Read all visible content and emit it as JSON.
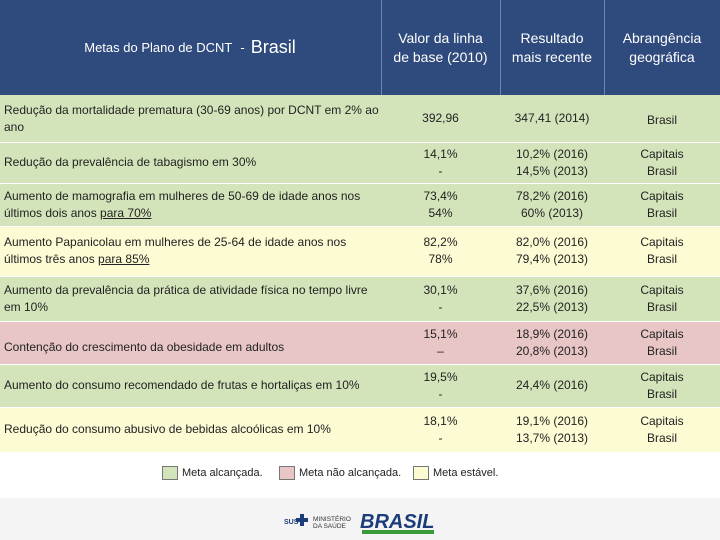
{
  "header": {
    "title": "Metas do Plano de DCNT",
    "title_sep": "-",
    "title_big": "Brasil",
    "col1_l1": "Valor da linha",
    "col1_l2": "de base (2010)",
    "col2_l1": "Resultado",
    "col2_l2": "mais recente",
    "col3_l1": "Abrangência",
    "col3_l2": "geográfica"
  },
  "rows": [
    {
      "status": "green",
      "goal": "Redução da mortalidade prematura (30-69 anos) por DCNT em 2% ao ano",
      "base_l1": "392,96",
      "base_l2": "",
      "res_l1": "347,41 (2014)",
      "res_l2": "",
      "scope_l1": "Brasil",
      "scope_l2": ""
    },
    {
      "status": "green",
      "goal": "Redução da prevalência de tabagismo em 30%",
      "base_l1": "14,1%",
      "base_l2": "-",
      "res_l1": "10,2% (2016)",
      "res_l2": "14,5% (2013)",
      "scope_l1": "Capitais",
      "scope_l2": "Brasil"
    },
    {
      "status": "green",
      "goal_a": "Aumento de mamografia em mulheres de 50-69 de idade anos nos últimos dois anos ",
      "goal_b": "para 70%",
      "base_l1": "73,4%",
      "base_l2": "54%",
      "res_l1": "78,2% (2016)",
      "res_l2": "60% (2013)",
      "scope_l1": "Capitais",
      "scope_l2": "Brasil"
    },
    {
      "status": "yellow",
      "goal_a": "Aumento Papanicolau em mulheres de 25-64 de idade anos nos últimos três anos ",
      "goal_b": "para 85%",
      "base_l1": "82,2%",
      "base_l2": "78%",
      "res_l1": "82,0% (2016)",
      "res_l2": "79,4% (2013)",
      "scope_l1": "Capitais",
      "scope_l2": "Brasil"
    },
    {
      "status": "green",
      "goal": "Aumento da prevalência da prática de atividade física no tempo livre em 10%",
      "base_l1": "30,1%",
      "base_l2": "-",
      "res_l1": "37,6% (2016)",
      "res_l2": "22,5% (2013)",
      "scope_l1": "Capitais",
      "scope_l2": "Brasil"
    },
    {
      "status": "red",
      "goal": "Contenção do crescimento da obesidade em adultos",
      "base_l1": "15,1%",
      "base_l2": "–",
      "res_l1": "18,9% (2016)",
      "res_l2": "20,8% (2013)",
      "scope_l1": "Capitais",
      "scope_l2": "Brasil"
    },
    {
      "status": "green",
      "goal": "Aumento do consumo recomendado de frutas e hortaliças em 10%",
      "base_l1": "19,5%",
      "base_l2": "-",
      "res_l1": "24,4% (2016)",
      "res_l2": "",
      "scope_l1": "Capitais",
      "scope_l2": "Brasil"
    },
    {
      "status": "yellow",
      "goal": "Redução do consumo abusivo de bebidas alcoólicas em 10%",
      "base_l1": "18,1%",
      "base_l2": "-",
      "res_l1": "19,1% (2016)",
      "res_l2": "13,7% (2013)",
      "scope_l1": "Capitais",
      "scope_l2": "Brasil"
    }
  ],
  "legend": {
    "achieved": "Meta alcançada.",
    "not_achieved": "Meta não alcançada.",
    "stable": "Meta estável.",
    "colors": {
      "achieved": "#d4e4ba",
      "not_achieved": "#e9c6c6",
      "stable": "#fdfbd4"
    }
  },
  "footer": {
    "sus": "SUS",
    "ministry_l1": "MINISTÉRIO",
    "ministry_l2": "DA SAÚDE",
    "brand": "BRASIL"
  }
}
